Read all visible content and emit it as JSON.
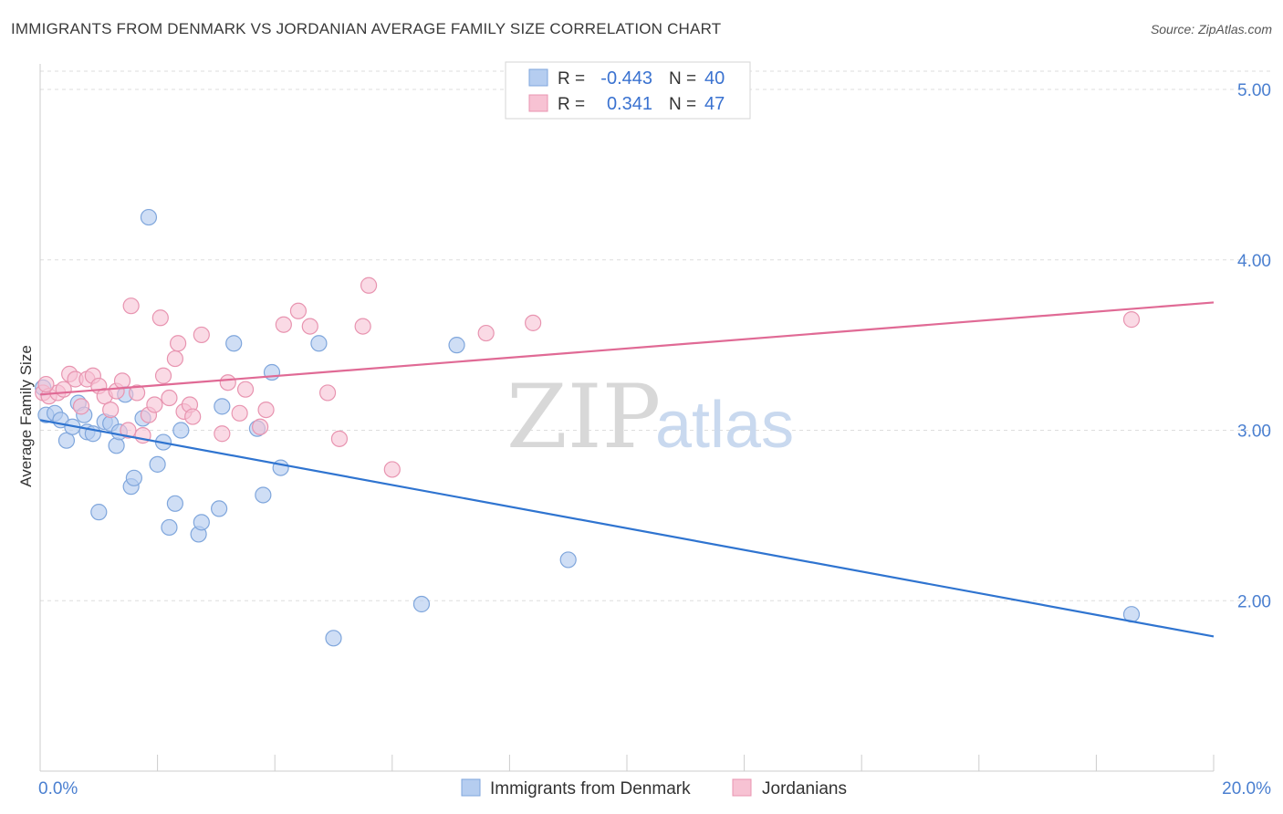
{
  "header": {
    "title": "IMMIGRANTS FROM DENMARK VS JORDANIAN AVERAGE FAMILY SIZE CORRELATION CHART",
    "source": "Source: ZipAtlas.com"
  },
  "watermark": {
    "zip": "ZIP",
    "atlas": "atlas"
  },
  "colors": {
    "blue_fill": "#b5cdf0",
    "blue_stroke": "#7fa6dc",
    "blue_line": "#2f74d0",
    "pink_fill": "#f7c2d3",
    "pink_stroke": "#e894b0",
    "pink_line": "#e06a95",
    "grid": "#dddddd",
    "tick_text": "#4a7fd0"
  },
  "legend_top": {
    "rows": [
      {
        "r_label": "R =",
        "r_value": "-0.443",
        "n_label": "N =",
        "n_value": "40"
      },
      {
        "r_label": "R =",
        "r_value": "0.341",
        "n_label": "N =",
        "n_value": "47"
      }
    ]
  },
  "legend_bottom": [
    "Immigrants from Denmark",
    "Jordanians"
  ],
  "chart_data": {
    "type": "scatter",
    "title": "IMMIGRANTS FROM DENMARK VS JORDANIAN AVERAGE FAMILY SIZE CORRELATION CHART",
    "xlabel": "",
    "ylabel": "Average Family Size",
    "xlim": [
      0,
      20
    ],
    "ylim": [
      1.0,
      5.15
    ],
    "x_tick_labels": [
      "0.0%",
      "20.0%"
    ],
    "y_ticks": [
      2.0,
      3.0,
      4.0,
      5.0
    ],
    "y_tick_labels": [
      "2.00",
      "3.00",
      "4.00",
      "5.00"
    ],
    "grid": true,
    "legend_placement": "top-center",
    "series": [
      {
        "name": "Immigrants from Denmark",
        "r": -0.443,
        "n": 40,
        "trend": {
          "x": [
            0,
            20
          ],
          "y": [
            3.06,
            1.79
          ]
        },
        "points": [
          [
            0.1,
            3.09
          ],
          [
            0.25,
            3.1
          ],
          [
            0.35,
            3.06
          ],
          [
            0.45,
            2.94
          ],
          [
            0.55,
            3.02
          ],
          [
            0.65,
            3.16
          ],
          [
            0.75,
            3.09
          ],
          [
            0.8,
            2.99
          ],
          [
            0.9,
            2.98
          ],
          [
            1.0,
            2.52
          ],
          [
            1.1,
            3.05
          ],
          [
            1.2,
            3.04
          ],
          [
            1.3,
            2.91
          ],
          [
            1.35,
            2.99
          ],
          [
            1.45,
            3.21
          ],
          [
            1.55,
            2.67
          ],
          [
            1.6,
            2.72
          ],
          [
            1.75,
            3.07
          ],
          [
            1.85,
            4.25
          ],
          [
            2.0,
            2.8
          ],
          [
            2.1,
            2.93
          ],
          [
            2.2,
            2.43
          ],
          [
            2.3,
            2.57
          ],
          [
            2.4,
            3.0
          ],
          [
            2.7,
            2.39
          ],
          [
            2.75,
            2.46
          ],
          [
            3.05,
            2.54
          ],
          [
            3.1,
            3.14
          ],
          [
            3.3,
            3.51
          ],
          [
            3.7,
            3.01
          ],
          [
            3.8,
            2.62
          ],
          [
            3.95,
            3.34
          ],
          [
            4.1,
            2.78
          ],
          [
            4.75,
            3.51
          ],
          [
            5.0,
            1.78
          ],
          [
            6.5,
            1.98
          ],
          [
            7.1,
            3.5
          ],
          [
            9.0,
            2.24
          ],
          [
            18.6,
            1.92
          ],
          [
            0.05,
            3.25
          ]
        ]
      },
      {
        "name": "Jordanians",
        "r": 0.341,
        "n": 47,
        "trend": {
          "x": [
            0,
            20
          ],
          "y": [
            3.21,
            3.75
          ]
        },
        "points": [
          [
            0.05,
            3.22
          ],
          [
            0.15,
            3.2
          ],
          [
            0.3,
            3.22
          ],
          [
            0.4,
            3.24
          ],
          [
            0.5,
            3.33
          ],
          [
            0.6,
            3.3
          ],
          [
            0.7,
            3.14
          ],
          [
            0.8,
            3.3
          ],
          [
            0.9,
            3.32
          ],
          [
            1.0,
            3.26
          ],
          [
            1.1,
            3.2
          ],
          [
            1.2,
            3.12
          ],
          [
            1.3,
            3.23
          ],
          [
            1.4,
            3.29
          ],
          [
            1.5,
            3.0
          ],
          [
            1.55,
            3.73
          ],
          [
            1.65,
            3.22
          ],
          [
            1.75,
            2.97
          ],
          [
            1.85,
            3.09
          ],
          [
            1.95,
            3.15
          ],
          [
            2.05,
            3.66
          ],
          [
            2.1,
            3.32
          ],
          [
            2.2,
            3.19
          ],
          [
            2.3,
            3.42
          ],
          [
            2.35,
            3.51
          ],
          [
            2.45,
            3.11
          ],
          [
            2.55,
            3.15
          ],
          [
            2.6,
            3.08
          ],
          [
            2.75,
            3.56
          ],
          [
            3.1,
            2.98
          ],
          [
            3.2,
            3.28
          ],
          [
            3.4,
            3.1
          ],
          [
            3.5,
            3.24
          ],
          [
            3.75,
            3.02
          ],
          [
            3.85,
            3.12
          ],
          [
            4.15,
            3.62
          ],
          [
            4.4,
            3.7
          ],
          [
            4.6,
            3.61
          ],
          [
            4.9,
            3.22
          ],
          [
            5.1,
            2.95
          ],
          [
            5.5,
            3.61
          ],
          [
            5.6,
            3.85
          ],
          [
            6.0,
            2.77
          ],
          [
            7.6,
            3.57
          ],
          [
            8.4,
            3.63
          ],
          [
            18.6,
            3.65
          ],
          [
            0.1,
            3.27
          ]
        ]
      }
    ]
  }
}
